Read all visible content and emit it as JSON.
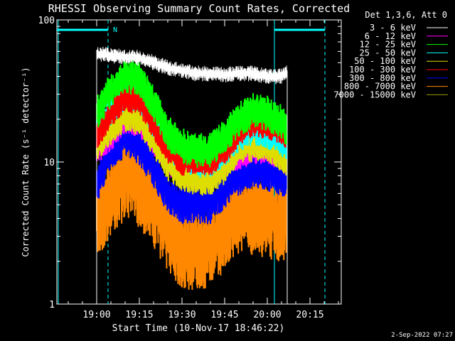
{
  "chart_data": {
    "type": "line",
    "title": "RHESSI Observing Summary Count Rates, Corrected",
    "xlabel": "Start Time (10-Nov-17 18:46:22)",
    "ylabel": "Corrected Count Rate (s⁻¹ detector⁻¹)",
    "y_scale": "log",
    "ylim": [
      1,
      100
    ],
    "xlim": [
      "18:46",
      "20:26"
    ],
    "x_ticks": [
      "19:00",
      "19:15",
      "19:30",
      "19:45",
      "20:00",
      "20:15"
    ],
    "y_ticks": [
      "1",
      "10",
      "100"
    ],
    "legend_title": "Det 1,3,6, Att 0",
    "legend_position": "right",
    "footer_date": "2-Sep-2022 07:27",
    "marker_label": "N",
    "data_start": "19:00",
    "data_end": "20:07",
    "series": [
      {
        "name": "3 - 6 keV",
        "color": "#ffffff",
        "x": [
          "19:00",
          "19:05",
          "19:10",
          "19:15",
          "19:20",
          "19:25",
          "19:30",
          "19:35",
          "19:40",
          "19:45",
          "19:50",
          "19:55",
          "20:00",
          "20:05",
          "20:07"
        ],
        "values": [
          58,
          56,
          55,
          54,
          50,
          46,
          44,
          42,
          42,
          41,
          42,
          42,
          40,
          40,
          44
        ]
      },
      {
        "name": "6 - 12 keV",
        "color": "#ff00ff",
        "x": [
          "19:00",
          "19:05",
          "19:10",
          "19:15",
          "19:20",
          "19:25",
          "19:30",
          "19:35",
          "19:40",
          "19:45",
          "19:50",
          "19:55",
          "20:00",
          "20:05",
          "20:07"
        ],
        "values": [
          12,
          15,
          19,
          19,
          14,
          10,
          8.5,
          8,
          8.2,
          9.5,
          11,
          12,
          12,
          11,
          10
        ]
      },
      {
        "name": "12 - 25 keV",
        "color": "#00ff00",
        "x": [
          "19:00",
          "19:05",
          "19:10",
          "19:15",
          "19:20",
          "19:25",
          "19:30",
          "19:35",
          "19:40",
          "19:45",
          "19:50",
          "19:55",
          "20:00",
          "20:05",
          "20:07"
        ],
        "values": [
          22,
          32,
          40,
          38,
          26,
          16,
          13,
          12,
          12,
          15,
          20,
          23,
          22,
          19,
          17
        ]
      },
      {
        "name": "25 - 50 keV",
        "color": "#00ffff",
        "x": [
          "19:00",
          "19:05",
          "19:10",
          "19:15",
          "19:20",
          "19:25",
          "19:30",
          "19:35",
          "19:40",
          "19:45",
          "19:50",
          "19:55",
          "20:00",
          "20:05",
          "20:07"
        ],
        "values": [
          17,
          23,
          30,
          28,
          19,
          13,
          11,
          10,
          10,
          12,
          15,
          17,
          16,
          14,
          13
        ]
      },
      {
        "name": "50 - 100 keV",
        "color": "#dddd00",
        "x": [
          "19:00",
          "19:05",
          "19:10",
          "19:15",
          "19:20",
          "19:25",
          "19:30",
          "19:35",
          "19:40",
          "19:45",
          "19:50",
          "19:55",
          "20:00",
          "20:05",
          "20:07"
        ],
        "values": [
          13,
          17,
          21,
          20,
          14,
          9.5,
          8,
          7.5,
          7.5,
          9,
          12,
          13,
          13,
          11,
          10
        ]
      },
      {
        "name": "100 - 300 keV",
        "color": "#ff0000",
        "x": [
          "19:00",
          "19:05",
          "19:10",
          "19:15",
          "19:20",
          "19:25",
          "19:30",
          "19:35",
          "19:40",
          "19:45",
          "19:50",
          "19:55",
          "20:00",
          "20:05",
          "20:07"
        ],
        "values": [
          15,
          22,
          28,
          27,
          18,
          12,
          10,
          10,
          10,
          12,
          16,
          19,
          18,
          16,
          15
        ]
      },
      {
        "name": "300 - 800 keV",
        "color": "#0000ff",
        "x": [
          "19:00",
          "19:05",
          "19:10",
          "19:15",
          "19:20",
          "19:25",
          "19:30",
          "19:35",
          "19:40",
          "19:45",
          "19:50",
          "19:55",
          "20:00",
          "20:05",
          "20:07"
        ],
        "values": [
          7,
          12,
          15,
          13,
          9,
          6,
          5,
          5,
          5,
          6.5,
          8,
          9,
          8.5,
          8,
          7
        ]
      },
      {
        "name": "800 - 7000 keV",
        "color": "#ff8800",
        "x": [
          "19:00",
          "19:05",
          "19:10",
          "19:15",
          "19:20",
          "19:25",
          "19:30",
          "19:35",
          "19:40",
          "19:45",
          "19:50",
          "19:55",
          "20:00",
          "20:05",
          "20:07"
        ],
        "values": [
          4,
          6,
          8,
          7,
          5,
          3.5,
          2.5,
          2.5,
          2.6,
          3.5,
          4.5,
          4.5,
          4.2,
          4,
          4
        ]
      },
      {
        "name": "7000 - 15000 keV",
        "color": "#999900",
        "x": [],
        "values": []
      }
    ]
  }
}
